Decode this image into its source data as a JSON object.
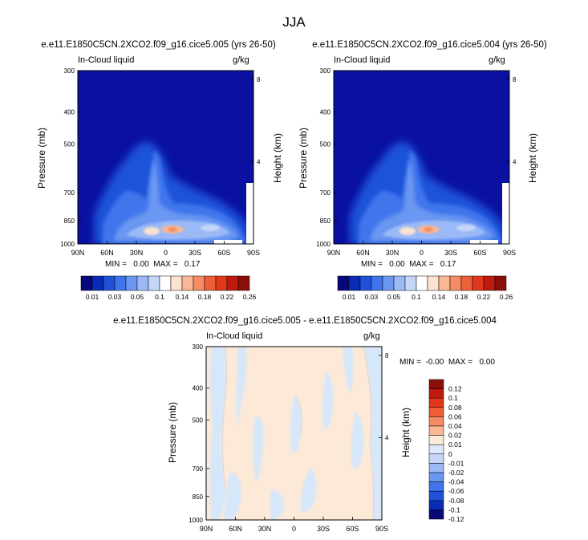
{
  "page_title": "JJA",
  "panels": [
    {
      "id": "top-left",
      "case_title": "e.e11.E1850C5CN.2XCO2.f09_g16.cice5.005 (yrs 26-50)",
      "left_label": "In-Cloud liquid",
      "right_label": "g/kg",
      "ylabel": "Pressure (mb)",
      "ylabel_right": "Height (km)",
      "min_max": "MIN =   0.00  MAX =   0.17"
    },
    {
      "id": "top-right",
      "case_title": "e.e11.E1850C5CN.2XCO2.f09_g16.cice5.004 (yrs 26-50)",
      "left_label": "In-Cloud liquid",
      "right_label": "g/kg",
      "ylabel": "Pressure (mb)",
      "ylabel_right": "Height (km)",
      "min_max": "MIN =   0.00  MAX =   0.17"
    },
    {
      "id": "bottom",
      "case_title": "e.e11.E1850C5CN.2XCO2.f09_g16.cice5.005 - e.e11.E1850C5CN.2XCO2.f09_g16.cice5.004",
      "left_label": "In-Cloud liquid",
      "right_label": "g/kg",
      "ylabel": "Pressure (mb)",
      "ylabel_right": "Height (km)",
      "min_max": "MIN =  -0.00  MAX =   0.00"
    }
  ],
  "colors": {
    "abs_scale": [
      "#08087a",
      "#0a2bb3",
      "#1f52d9",
      "#3f74ec",
      "#6b97f2",
      "#9ab9f6",
      "#c5d6f9",
      "#ffffff",
      "#fde2d0",
      "#f9b796",
      "#f58c63",
      "#ee5f38",
      "#e0381c",
      "#c01a0f",
      "#8a0f0a"
    ],
    "diff_scale": [
      "#08087a",
      "#0a2bb3",
      "#1f52d9",
      "#3f74ec",
      "#6b97f2",
      "#9ab9f6",
      "#c5d6f9",
      "#dde9fb",
      "#fde9d7",
      "#f9b796",
      "#f58c63",
      "#ee5f38",
      "#e0381c",
      "#c01a0f",
      "#8a0f0a"
    ],
    "background_field": "#0a10a0",
    "diff_neutral": "#fde9d7",
    "diff_neg": "#d6e7fa"
  },
  "chart_data": [
    {
      "type": "heatmap",
      "title": "e.e11.E1850C5CN.2XCO2.f09_g16.cice5.005 (yrs 26-50)",
      "variable": "In-Cloud liquid",
      "units": "g/kg",
      "xlabel": "",
      "ylabel": "Pressure (mb)",
      "ylabel_right": "Height (km)",
      "x_ticks": [
        "90N",
        "60N",
        "30N",
        "0",
        "30S",
        "60S",
        "90S"
      ],
      "y_ticks": [
        "300",
        "400",
        "500",
        "700",
        "850",
        "1000"
      ],
      "y_ticks_right": [
        "8",
        "4"
      ],
      "y_scale": "log",
      "ylim": [
        1000,
        300
      ],
      "min": 0.0,
      "max": 0.17,
      "colorbar_labels": [
        "0.01",
        "0.03",
        "0.05",
        "0.1",
        "0.14",
        "0.18",
        "0.22",
        "0.26"
      ]
    },
    {
      "type": "heatmap",
      "title": "e.e11.E1850C5CN.2XCO2.f09_g16.cice5.004 (yrs 26-50)",
      "variable": "In-Cloud liquid",
      "units": "g/kg",
      "ylabel": "Pressure (mb)",
      "ylabel_right": "Height (km)",
      "x_ticks": [
        "90N",
        "60N",
        "30N",
        "0",
        "30S",
        "60S",
        "90S"
      ],
      "y_ticks": [
        "300",
        "400",
        "500",
        "700",
        "850",
        "1000"
      ],
      "y_ticks_right": [
        "8",
        "4"
      ],
      "y_scale": "log",
      "ylim": [
        1000,
        300
      ],
      "min": 0.0,
      "max": 0.17,
      "colorbar_labels": [
        "0.01",
        "0.03",
        "0.05",
        "0.1",
        "0.14",
        "0.18",
        "0.22",
        "0.26"
      ]
    },
    {
      "type": "heatmap",
      "title": "e.e11.E1850C5CN.2XCO2.f09_g16.cice5.005 - e.e11.E1850C5CN.2XCO2.f09_g16.cice5.004",
      "variable": "In-Cloud liquid",
      "units": "g/kg",
      "ylabel": "Pressure (mb)",
      "ylabel_right": "Height (km)",
      "x_ticks": [
        "90N",
        "60N",
        "30N",
        "0",
        "30S",
        "60S",
        "90S"
      ],
      "y_ticks": [
        "300",
        "400",
        "500",
        "700",
        "850",
        "1000"
      ],
      "y_ticks_right": [
        "8",
        "4"
      ],
      "y_scale": "log",
      "ylim": [
        1000,
        300
      ],
      "min": -0.0,
      "max": 0.0,
      "colorbar_labels": [
        "0.12",
        "0.1",
        "0.08",
        "0.06",
        "0.04",
        "0.02",
        "0.01",
        "0",
        "-0.01",
        "-0.02",
        "-0.04",
        "-0.06",
        "-0.08",
        "-0.1",
        "-0.12"
      ]
    }
  ]
}
